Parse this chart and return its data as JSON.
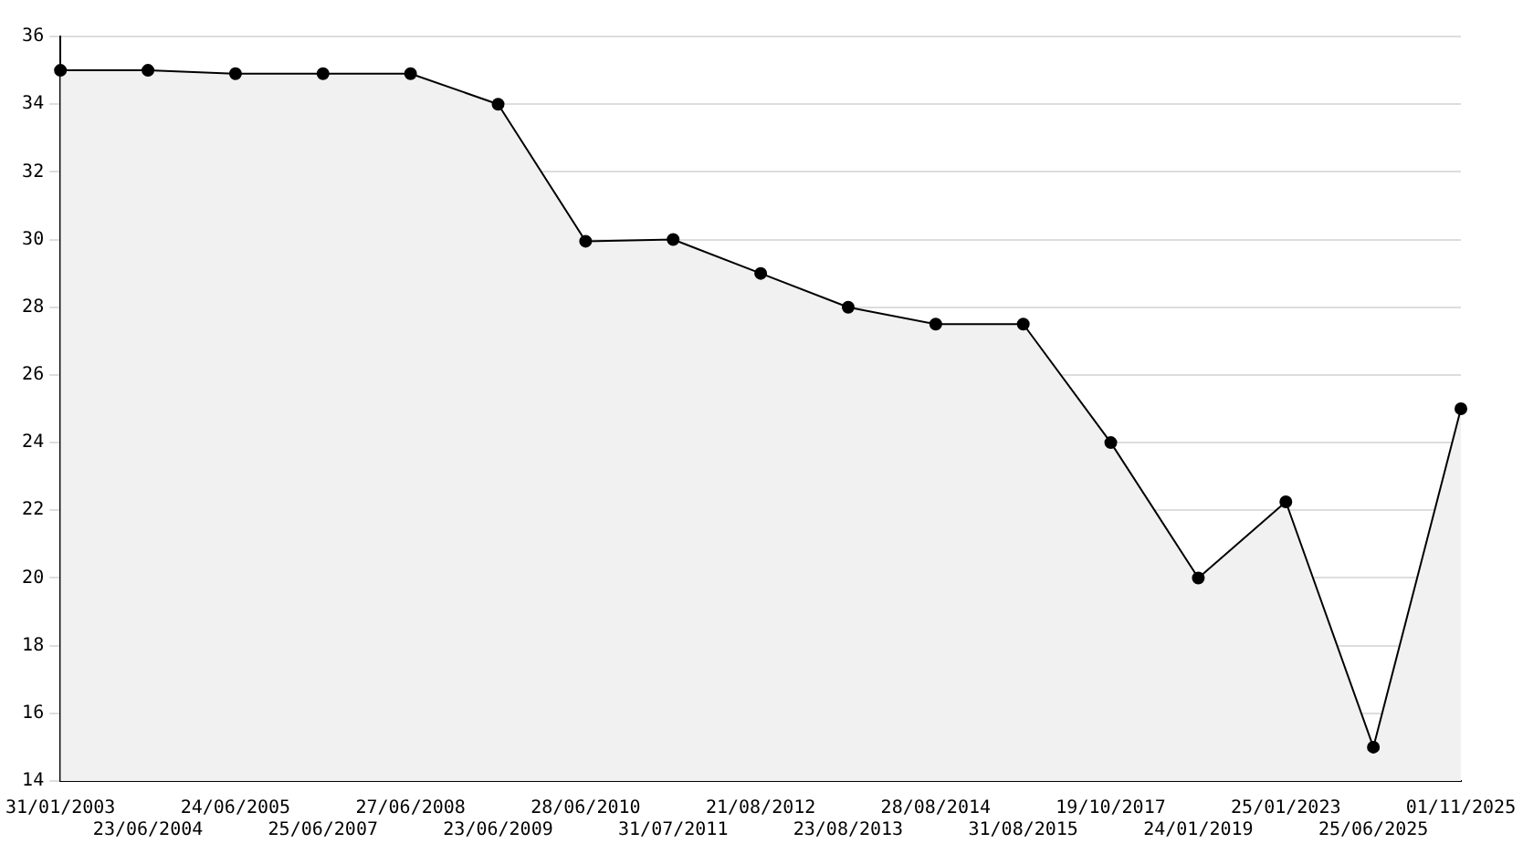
{
  "chart_data": {
    "type": "area",
    "categories": [
      "31/01/2003",
      "23/06/2004",
      "24/06/2005",
      "25/06/2007",
      "27/06/2008",
      "23/06/2009",
      "28/06/2010",
      "31/07/2011",
      "21/08/2012",
      "23/08/2013",
      "28/08/2014",
      "31/08/2015",
      "19/10/2017",
      "24/01/2019",
      "25/01/2023",
      "25/06/2025",
      "01/11/2025"
    ],
    "series": [
      {
        "color": "#000000",
        "values": [
          35,
          35,
          34.9,
          34.9,
          34.9,
          34,
          29.95,
          30,
          29,
          28,
          27.5,
          27.5,
          24,
          20,
          22.25,
          15,
          25
        ]
      }
    ],
    "ylim": [
      14,
      36
    ],
    "yticks": [
      14,
      16,
      18,
      20,
      22,
      24,
      26,
      28,
      30,
      32,
      34,
      36
    ],
    "grid": "y",
    "marker": "circle",
    "legend": false
  }
}
